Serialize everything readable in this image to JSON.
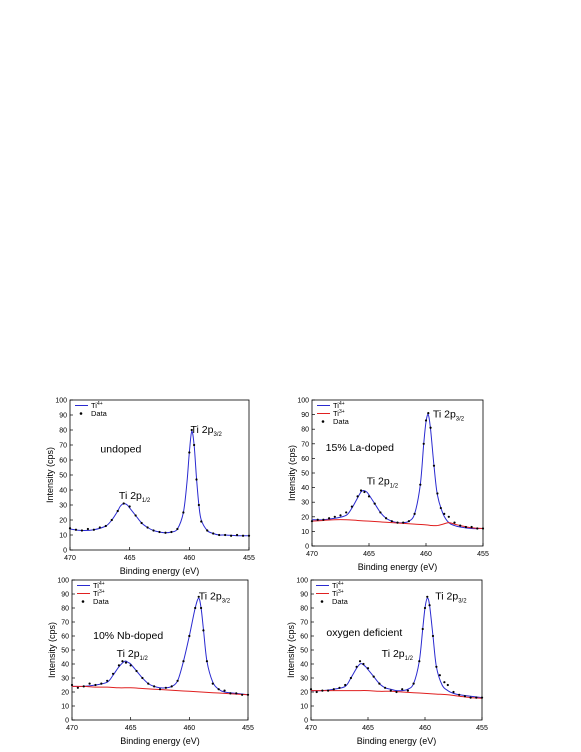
{
  "colors": {
    "ti4": "#2a2ad0",
    "ti3": "#e02020",
    "data": "#000000",
    "axis": "#000000"
  },
  "chart_data": [
    {
      "type": "line",
      "title": "",
      "annotation": "undoped",
      "xlabel": "Binding energy (eV)",
      "ylabel": "Intensity (cps)",
      "xlim": [
        470,
        455
      ],
      "ylim": [
        0,
        100
      ],
      "xticks": [
        "470",
        "465",
        "460",
        "455"
      ],
      "yticks": [
        "0",
        "10",
        "20",
        "30",
        "40",
        "50",
        "60",
        "70",
        "80",
        "90",
        "100"
      ],
      "legend": {
        "position": "top-left",
        "entries": [
          {
            "label": "Ti",
            "sup": "4+",
            "kind": "ti4"
          },
          {
            "label": "Data",
            "kind": "data"
          }
        ]
      },
      "peak_labels": [
        {
          "text": "Ti 2p",
          "sub": "3/2",
          "x": 459.9,
          "y": 78
        },
        {
          "text": "Ti 2p",
          "sub": "1/2",
          "x": 465.9,
          "y": 34
        }
      ],
      "series": [
        {
          "name": "Ti4+",
          "kind": "ti4",
          "x": [
            470,
            469,
            468,
            467,
            466.5,
            466,
            465.8,
            465.5,
            465.2,
            465,
            464.5,
            464,
            463.5,
            463,
            462.5,
            462,
            461.5,
            461,
            460.5,
            460.2,
            460,
            459.8,
            459.6,
            459.4,
            459.2,
            459,
            458.5,
            458,
            457.5,
            457,
            456,
            455
          ],
          "y": [
            14,
            13,
            13.5,
            16,
            20,
            26,
            29,
            31,
            30,
            28,
            23,
            18,
            15,
            13,
            12,
            11.5,
            12,
            14,
            25,
            45,
            65,
            79,
            70,
            48,
            30,
            20,
            13,
            11,
            10,
            10,
            9.5,
            9.5
          ]
        },
        {
          "name": "Data",
          "kind": "data",
          "x": [
            470,
            469.5,
            469,
            468.5,
            468,
            467.5,
            467,
            466.5,
            466,
            465.5,
            465,
            464.5,
            464,
            463.5,
            463,
            462.5,
            462,
            461.5,
            461,
            460.5,
            460,
            459.8,
            459.6,
            459.4,
            459.2,
            459,
            458.5,
            458,
            457.5,
            457,
            456.5,
            456,
            455.5,
            455
          ],
          "y": [
            14.5,
            13.5,
            13,
            14,
            13.5,
            15,
            16,
            20,
            26,
            31,
            29,
            23,
            18,
            15,
            13,
            12,
            11.5,
            12,
            14,
            25,
            65,
            80,
            70,
            47,
            30,
            19,
            13,
            11,
            10,
            10,
            9.5,
            10,
            9.5,
            9.5
          ]
        }
      ]
    },
    {
      "type": "line",
      "title": "",
      "annotation": "15% La-doped",
      "xlabel": "Binding energy (eV)",
      "ylabel": "Intensity (cps)",
      "xlim": [
        470,
        455
      ],
      "ylim": [
        0,
        100
      ],
      "xticks": [
        "470",
        "465",
        "460",
        "455"
      ],
      "yticks": [
        "0",
        "10",
        "20",
        "30",
        "40",
        "50",
        "60",
        "70",
        "80",
        "90",
        "100"
      ],
      "legend": {
        "position": "top-left",
        "entries": [
          {
            "label": "Ti",
            "sup": "4+",
            "kind": "ti4"
          },
          {
            "label": "Ti",
            "sup": "3+",
            "kind": "ti3"
          },
          {
            "label": "Data",
            "kind": "data"
          }
        ]
      },
      "peak_labels": [
        {
          "text": "Ti 2p",
          "sub": "3/2",
          "x": 459.4,
          "y": 88
        },
        {
          "text": "Ti 2p",
          "sub": "1/2",
          "x": 465.2,
          "y": 42
        }
      ],
      "series": [
        {
          "name": "Ti4+",
          "kind": "ti4",
          "x": [
            470,
            469,
            468,
            467,
            466.5,
            466,
            465.7,
            465.5,
            465.2,
            465,
            464.5,
            464,
            463.5,
            463,
            462.5,
            462,
            461.5,
            461,
            460.5,
            460.2,
            460,
            459.8,
            459.6,
            459.3,
            459,
            458.5,
            458,
            457.5,
            457,
            456,
            455
          ],
          "y": [
            18,
            18,
            19,
            21,
            26,
            33,
            37,
            38,
            37,
            35,
            29,
            23,
            19,
            17,
            16,
            16,
            17,
            22,
            42,
            70,
            85,
            90,
            80,
            55,
            35,
            22,
            16,
            14,
            13,
            12,
            12
          ]
        },
        {
          "name": "Ti3+",
          "kind": "ti3",
          "x": [
            470,
            469,
            468,
            467,
            466,
            465,
            464,
            463,
            462,
            461,
            460,
            459.5,
            459,
            458.5,
            458,
            457.5,
            457,
            456,
            455
          ],
          "y": [
            17,
            17.5,
            18,
            18,
            17.5,
            17,
            16.5,
            16,
            15.5,
            15,
            14.5,
            14,
            14,
            15,
            16,
            15,
            14,
            12.5,
            12
          ]
        },
        {
          "name": "Data",
          "kind": "data",
          "x": [
            470,
            469.5,
            469,
            468.5,
            468,
            467.5,
            467,
            466.5,
            466,
            465.7,
            465.4,
            465,
            464.5,
            464,
            463.5,
            463,
            462.5,
            462,
            461.5,
            461,
            460.5,
            460.2,
            460,
            459.8,
            459.6,
            459.3,
            459,
            458.7,
            458.4,
            458,
            457.5,
            457,
            456.5,
            456,
            455.5,
            455
          ],
          "y": [
            17,
            18,
            18,
            19,
            20,
            21,
            23,
            27,
            34,
            38,
            37,
            34,
            29,
            23,
            19,
            17,
            16,
            16,
            17,
            22,
            42,
            70,
            86,
            91,
            81,
            55,
            36,
            26,
            22,
            20,
            16,
            14,
            13,
            13,
            12,
            12
          ]
        }
      ]
    },
    {
      "type": "line",
      "title": "",
      "annotation": "10% Nb-doped",
      "xlabel": "Binding energy (eV)",
      "ylabel": "Intensity (cps)",
      "xlim": [
        470,
        455
      ],
      "ylim": [
        0,
        100
      ],
      "xticks": [
        "470",
        "465",
        "460",
        "455"
      ],
      "yticks": [
        "0",
        "10",
        "20",
        "30",
        "40",
        "50",
        "60",
        "70",
        "80",
        "90",
        "100"
      ],
      "legend": {
        "position": "top-left",
        "entries": [
          {
            "label": "Ti",
            "sup": "4+",
            "kind": "ti4"
          },
          {
            "label": "Ti",
            "sup": "3+",
            "kind": "ti3"
          },
          {
            "label": "Data",
            "kind": "data"
          }
        ]
      },
      "peak_labels": [
        {
          "text": "Ti 2p",
          "sub": "3/2",
          "x": 459.2,
          "y": 86
        },
        {
          "text": "Ti 2p",
          "sub": "1/2",
          "x": 466.2,
          "y": 45
        }
      ],
      "series": [
        {
          "name": "Ti4+",
          "kind": "ti4",
          "x": [
            470,
            469,
            468,
            467,
            466.5,
            466,
            465.5,
            465.2,
            465,
            464.5,
            464,
            463.5,
            463,
            462.5,
            462,
            461.5,
            461,
            460.5,
            460,
            459.5,
            459.2,
            459,
            458.8,
            458.5,
            458,
            457.5,
            457,
            456,
            455
          ],
          "y": [
            24,
            24,
            25,
            27,
            32,
            38,
            42,
            41,
            40,
            35,
            30,
            26,
            24,
            23,
            23,
            24,
            28,
            42,
            60,
            80,
            87,
            80,
            65,
            42,
            27,
            22,
            20,
            19,
            18
          ]
        },
        {
          "name": "Ti3+",
          "kind": "ti3",
          "x": [
            470,
            469,
            468,
            467,
            466,
            465,
            464,
            463,
            462,
            461,
            460,
            459,
            458,
            457,
            456,
            455
          ],
          "y": [
            24,
            24,
            23.5,
            23.5,
            23,
            23,
            22.5,
            22,
            21.5,
            21,
            20.5,
            20,
            19.5,
            19,
            18.5,
            18
          ]
        },
        {
          "name": "Data",
          "kind": "data",
          "x": [
            470,
            469.5,
            469,
            468.5,
            468,
            467.5,
            467,
            466.5,
            466,
            465.7,
            465.4,
            465,
            464.5,
            464,
            463.5,
            463,
            462.5,
            462,
            461.5,
            461,
            460.5,
            460,
            459.5,
            459.2,
            459,
            458.8,
            458.5,
            458,
            457.5,
            457,
            456.5,
            456,
            455.5,
            455
          ],
          "y": [
            25,
            23,
            24,
            26,
            25,
            26,
            28,
            33,
            39,
            42,
            41,
            39,
            35,
            30,
            26,
            24,
            22,
            23,
            24,
            28,
            42,
            60,
            80,
            88,
            80,
            64,
            42,
            26,
            22,
            21,
            19,
            19,
            18,
            18
          ]
        }
      ]
    },
    {
      "type": "line",
      "title": "",
      "annotation": "oxygen deficient",
      "xlabel": "Binding energy (eV)",
      "ylabel": "Intensity (cps)",
      "xlim": [
        470,
        455
      ],
      "ylim": [
        0,
        100
      ],
      "xticks": [
        "470",
        "465",
        "460",
        "455"
      ],
      "yticks": [
        "0",
        "10",
        "20",
        "30",
        "40",
        "50",
        "60",
        "70",
        "80",
        "90",
        "100"
      ],
      "legend": {
        "position": "top-left",
        "entries": [
          {
            "label": "Ti",
            "sup": "4+",
            "kind": "ti4"
          },
          {
            "label": "Ti",
            "sup": "3+",
            "kind": "ti3"
          },
          {
            "label": "Data",
            "kind": "data"
          }
        ]
      },
      "peak_labels": [
        {
          "text": "Ti 2p",
          "sub": "3/2",
          "x": 459.1,
          "y": 86
        },
        {
          "text": "Ti 2p",
          "sub": "1/2",
          "x": 463.8,
          "y": 45
        }
      ],
      "series": [
        {
          "name": "Ti4+",
          "kind": "ti4",
          "x": [
            470,
            469,
            468,
            467,
            466.5,
            466,
            465.7,
            465.5,
            465.2,
            465,
            464.5,
            464,
            463.5,
            463,
            462.5,
            462,
            461.5,
            461,
            460.5,
            460.2,
            460,
            459.8,
            459.6,
            459.3,
            459,
            458.5,
            458,
            457.5,
            457,
            456,
            455
          ],
          "y": [
            21,
            21,
            22,
            24,
            30,
            37,
            40,
            40,
            38,
            36,
            31,
            26,
            23,
            22,
            21,
            21,
            22,
            26,
            42,
            65,
            80,
            87,
            82,
            60,
            38,
            25,
            21,
            19,
            18,
            17,
            16
          ]
        },
        {
          "name": "Ti3+",
          "kind": "ti3",
          "x": [
            470,
            469,
            468,
            467,
            466,
            465,
            464,
            463,
            462,
            461,
            460,
            459,
            458,
            457,
            456,
            455
          ],
          "y": [
            21,
            21,
            21,
            21,
            21,
            21,
            20.5,
            20.5,
            20,
            19.5,
            19,
            18.5,
            18,
            17,
            16,
            15.5
          ]
        },
        {
          "name": "Data",
          "kind": "data",
          "x": [
            470,
            469.5,
            469,
            468.5,
            468,
            467.5,
            467,
            466.5,
            466,
            465.7,
            465.4,
            465,
            464.5,
            464,
            463.5,
            463,
            462.5,
            462,
            461.5,
            461,
            460.5,
            460.2,
            460,
            459.8,
            459.6,
            459.3,
            459,
            458.7,
            458.3,
            458,
            457.5,
            457,
            456.5,
            456,
            455.5,
            455
          ],
          "y": [
            22,
            20,
            21,
            21,
            22,
            23,
            25,
            30,
            38,
            42,
            40,
            37,
            31,
            26,
            23,
            21,
            20,
            22,
            21,
            26,
            42,
            65,
            80,
            88,
            82,
            60,
            38,
            32,
            27,
            25,
            20,
            18,
            17,
            16,
            16,
            16
          ]
        }
      ]
    }
  ]
}
